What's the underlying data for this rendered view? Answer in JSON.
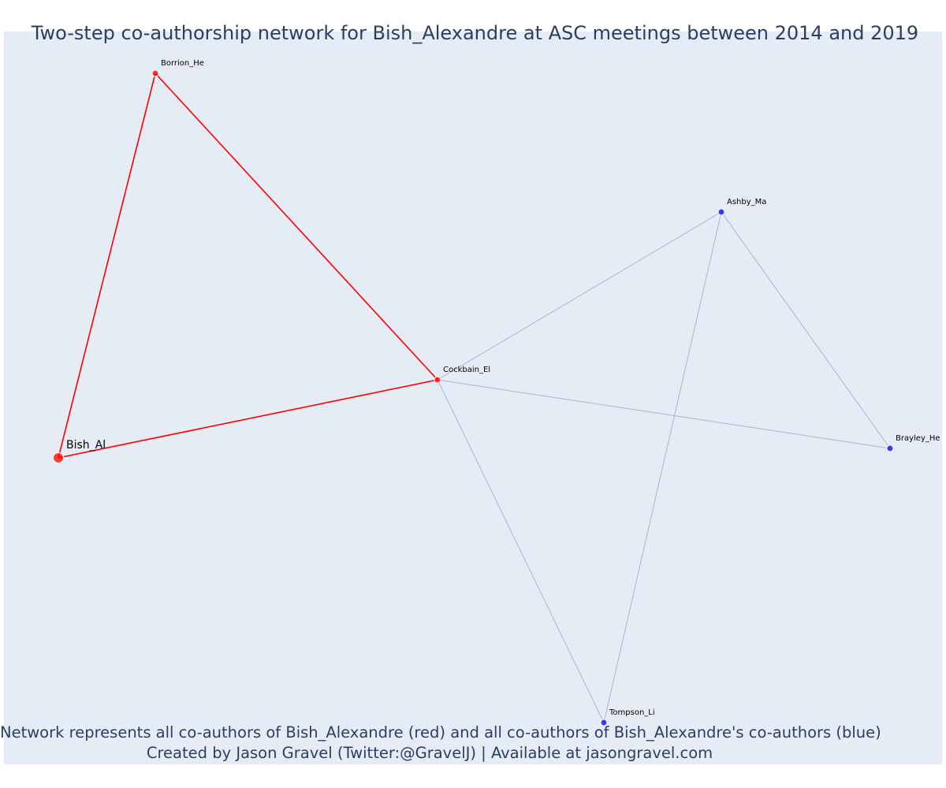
{
  "title": "Two-step co-authorship network for Bish_Alexandre at ASC meetings between 2014 and 2019",
  "caption": {
    "line1": "Network represents all co-authors of Bish_Alexandre (red) and all co-authors of Bish_Alexandre's co-authors (blue)",
    "line2": "Created by Jason Gravel (Twitter:@GravelJ) | Available at jasongravel.com"
  },
  "colors": {
    "focal": "#ff0000",
    "coauthor": "#ff0000",
    "second_step": "#0000ff",
    "edge_focal": "#ff0000",
    "edge_other": "#b3b3c6",
    "plot_bg": "#e5ecf6",
    "text": "#2a3f5f"
  },
  "nodes": [
    {
      "id": "Bish_Al",
      "label": "Bish_Al",
      "group": "focal"
    },
    {
      "id": "Borrion_He",
      "label": "Borrion_He",
      "group": "coauthor"
    },
    {
      "id": "Cockbain_El",
      "label": "Cockbain_El",
      "group": "coauthor"
    },
    {
      "id": "Ashby_Ma",
      "label": "Ashby_Ma",
      "group": "second_step"
    },
    {
      "id": "Brayley_He",
      "label": "Brayley_He",
      "group": "second_step"
    },
    {
      "id": "Tompson_Li",
      "label": "Tompson_Li",
      "group": "second_step"
    }
  ],
  "edges": [
    {
      "source": "Bish_Al",
      "target": "Borrion_He",
      "type": "focal"
    },
    {
      "source": "Bish_Al",
      "target": "Cockbain_El",
      "type": "focal"
    },
    {
      "source": "Borrion_He",
      "target": "Cockbain_El",
      "type": "focal"
    },
    {
      "source": "Cockbain_El",
      "target": "Ashby_Ma",
      "type": "other"
    },
    {
      "source": "Cockbain_El",
      "target": "Brayley_He",
      "type": "other"
    },
    {
      "source": "Cockbain_El",
      "target": "Tompson_Li",
      "type": "other"
    },
    {
      "source": "Ashby_Ma",
      "target": "Brayley_He",
      "type": "other"
    },
    {
      "source": "Ashby_Ma",
      "target": "Tompson_Li",
      "type": "other"
    }
  ]
}
